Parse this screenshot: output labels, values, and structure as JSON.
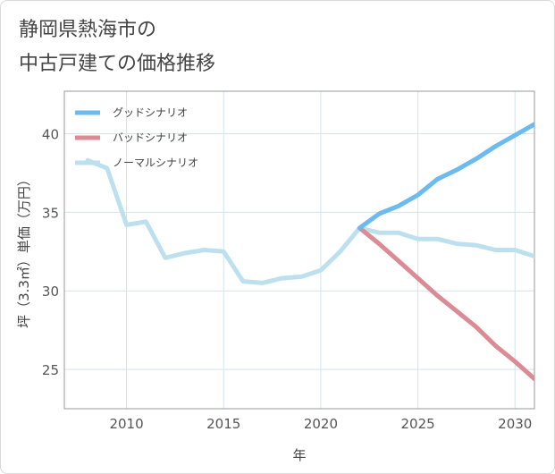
{
  "title": {
    "line1": "静岡県熱海市の",
    "line2": "中古戸建ての価格推移"
  },
  "chart_data": {
    "type": "line",
    "xlabel": "年",
    "ylabel": "坪（3.3㎡）単価（万円）",
    "xlim": [
      2006.8,
      2031
    ],
    "ylim": [
      22.5,
      42.7
    ],
    "xticks": [
      2010,
      2015,
      2020,
      2025,
      2030
    ],
    "yticks": [
      25,
      30,
      35,
      40
    ],
    "grid": true,
    "legend_position": "top-left",
    "series": [
      {
        "name": "グッドシナリオ",
        "color": "#6bbaf0",
        "x": [
          2022,
          2023,
          2024,
          2025,
          2026,
          2027,
          2028,
          2029,
          2030,
          2031
        ],
        "y": [
          34.0,
          34.9,
          35.4,
          36.1,
          37.1,
          37.7,
          38.4,
          39.2,
          39.9,
          40.6
        ]
      },
      {
        "name": "バッドシナリオ",
        "color": "#dc8a93",
        "x": [
          2022,
          2023,
          2024,
          2025,
          2026,
          2027,
          2028,
          2029,
          2030,
          2031
        ],
        "y": [
          34.0,
          33.0,
          31.9,
          30.8,
          29.7,
          28.7,
          27.7,
          26.5,
          25.5,
          24.4
        ]
      },
      {
        "name": "ノーマルシナリオ",
        "color": "#bde0ef",
        "x": [
          2008,
          2009,
          2010,
          2011,
          2012,
          2013,
          2014,
          2015,
          2016,
          2017,
          2018,
          2019,
          2020,
          2021,
          2022,
          2023,
          2024,
          2025,
          2026,
          2027,
          2028,
          2029,
          2030,
          2031
        ],
        "y": [
          38.3,
          37.8,
          34.2,
          34.4,
          32.1,
          32.4,
          32.6,
          32.5,
          30.6,
          30.5,
          30.8,
          30.9,
          31.3,
          32.5,
          34.0,
          33.7,
          33.7,
          33.3,
          33.3,
          33.0,
          32.9,
          32.6,
          32.6,
          32.2
        ]
      }
    ]
  }
}
